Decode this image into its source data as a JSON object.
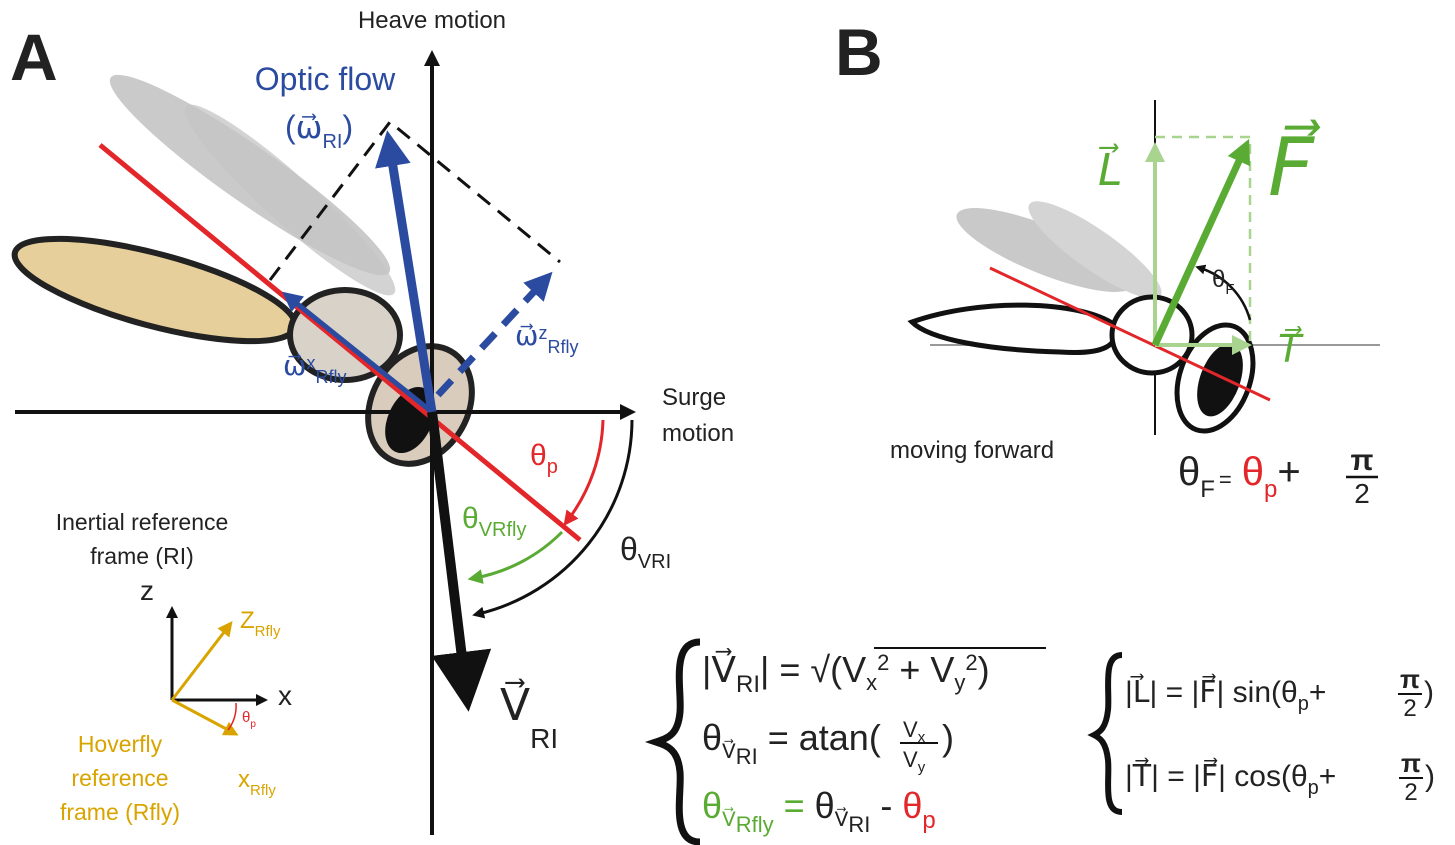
{
  "panel_a": {
    "label": "A",
    "heave": "Heave motion",
    "surge": [
      "Surge",
      "motion"
    ],
    "optic_flow": "Optic flow",
    "omega_ri": [
      "(ω⃗",
      "RI",
      ")"
    ],
    "omega_x": [
      "ω⃗",
      "x",
      "Rfly"
    ],
    "omega_z": [
      "ω⃗",
      "z",
      "Rfly"
    ],
    "theta_p": [
      "θ",
      "p"
    ],
    "theta_vrfly": [
      "θ",
      "VRfly"
    ],
    "theta_vri": [
      "θ",
      "VRI"
    ],
    "v_ri": [
      "V⃗",
      "RI"
    ],
    "frame_ri": [
      "Inertial reference",
      "frame (RI)"
    ],
    "axis_z": "z",
    "axis_x": "x",
    "z_rfly": [
      "Z",
      "Rfly"
    ],
    "x_rfly": [
      "x",
      "Rfly"
    ],
    "theta_p_small": [
      "θ",
      "p"
    ],
    "frame_rfly": [
      "Hoverfly",
      "reference",
      "frame (Rfly)"
    ]
  },
  "panel_b": {
    "label": "B",
    "lift": "L⃗",
    "force": "F⃗",
    "thrust": "T⃗",
    "theta_f": [
      "θ",
      "F"
    ],
    "moving": "moving forward",
    "equation": [
      "θ",
      "F",
      "=",
      "θ",
      "p",
      "+",
      "π",
      "2"
    ]
  },
  "equations_v": [
    [
      "|V⃗",
      "RI",
      "| = √(V",
      "x",
      "2",
      " + V",
      "y",
      "2",
      ")"
    ],
    [
      "θ",
      "V⃗",
      "RI",
      " = atan(",
      "V",
      "x",
      "V",
      "y",
      ")"
    ],
    [
      "θ",
      "V⃗",
      "Rfly",
      " = ",
      "θ",
      "V⃗",
      "RI",
      " - ",
      "θ",
      "p"
    ]
  ],
  "equations_f": [
    [
      "|L⃗| = |F⃗| sin(θ",
      "p",
      "+",
      "π",
      "2",
      ")"
    ],
    [
      "|T⃗| = |F⃗| cos(θ",
      "p",
      "+",
      "π",
      "2",
      ")"
    ]
  ]
}
